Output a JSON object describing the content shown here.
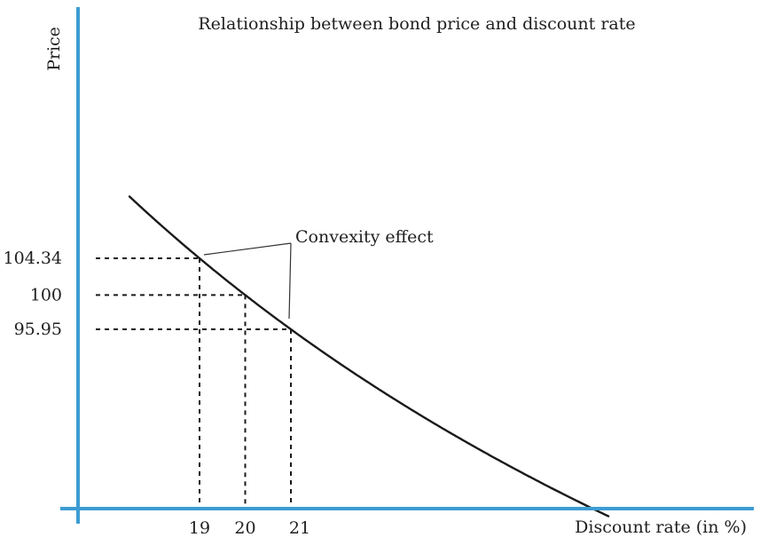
{
  "chart_data": {
    "type": "line",
    "title": "Relationship between bond price and discount rate",
    "xlabel": "Discount rate (in %)",
    "ylabel": "Price",
    "annotation": "Convexity effect",
    "marked_points": [
      {
        "x": 19,
        "y": 104.34,
        "x_label": "19",
        "y_label": "104.34"
      },
      {
        "x": 20,
        "y": 100,
        "x_label": "20",
        "y_label": "100"
      },
      {
        "x": 21,
        "y": 95.95,
        "x_label": "21",
        "y_label": "95.95"
      }
    ],
    "xlim": [
      17.8,
      28.5
    ],
    "ylim": [
      70,
      125
    ],
    "grid": false,
    "axis_color": "#3d9cd3",
    "curve_color": "#1a1a1a"
  }
}
